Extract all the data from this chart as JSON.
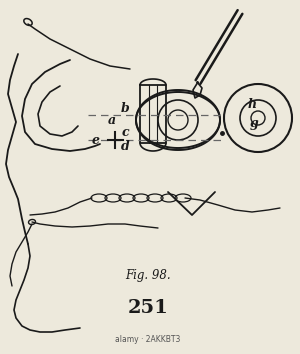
{
  "bg_color": "#ede9dc",
  "line_color": "#1a1a1a",
  "dashed_color": "#666666",
  "title": "Fig. 98.",
  "page_number": "251",
  "watermark": "alamy · 2AKKBT3",
  "figsize": [
    3.0,
    3.54
  ],
  "dpi": 100
}
